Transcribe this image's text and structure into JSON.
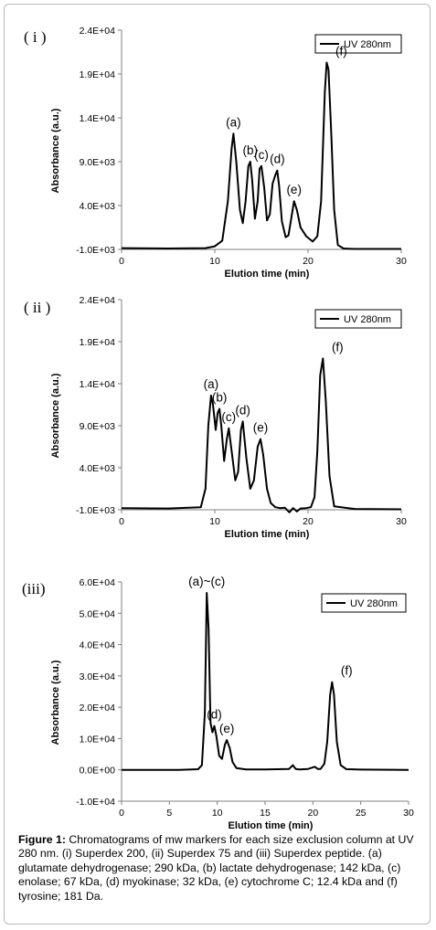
{
  "chart_data": [
    {
      "type": "line",
      "panel_label": "( i )",
      "xlabel": "Elution time (min)",
      "ylabel": "Absorbance (a.u.)",
      "xlim": [
        0,
        30
      ],
      "ylim": [
        -1000,
        24000
      ],
      "x_ticks": [
        0,
        10,
        20,
        30
      ],
      "x_tick_labels": [
        "0",
        "10",
        "20",
        "30"
      ],
      "y_ticks": [
        -1000,
        4000,
        9000,
        14000,
        19000,
        24000
      ],
      "y_tick_labels": [
        "-1.0E+03",
        "4.0E+03",
        "9.0E+03",
        "1.4E+04",
        "1.9E+04",
        "2.4E+04"
      ],
      "legend": "top-right",
      "series": [
        {
          "name": "UV 280nm",
          "x": [
            0,
            5,
            9,
            10,
            10.8,
            11.4,
            11.8,
            12.0,
            12.3,
            12.7,
            13.0,
            13.3,
            13.6,
            13.8,
            14.0,
            14.3,
            14.6,
            14.8,
            15.0,
            15.3,
            15.6,
            15.9,
            16.2,
            16.5,
            16.7,
            16.9,
            17.2,
            17.6,
            17.9,
            18.2,
            18.5,
            18.8,
            19.2,
            19.8,
            20.5,
            21.0,
            21.4,
            21.8,
            22.0,
            22.2,
            22.5,
            22.8,
            23.2,
            23.8,
            25,
            30
          ],
          "y": [
            -850,
            -900,
            -850,
            -650,
            0,
            4500,
            10500,
            12200,
            9000,
            3500,
            2000,
            4500,
            8500,
            9000,
            7000,
            2500,
            4500,
            8200,
            8500,
            6000,
            2300,
            3000,
            6500,
            7500,
            8000,
            6200,
            2200,
            400,
            600,
            2500,
            4500,
            3500,
            1500,
            500,
            -100,
            500,
            4500,
            17000,
            20300,
            19500,
            12000,
            3500,
            -500,
            -900,
            -950,
            -950
          ]
        }
      ],
      "annotations": [
        {
          "text": "(a)",
          "x": 12.0,
          "y": 12200
        },
        {
          "text": "(b)",
          "x": 13.8,
          "y": 9000
        },
        {
          "text": "(c)",
          "x": 15.0,
          "y": 8500
        },
        {
          "text": "(d)",
          "x": 16.7,
          "y": 8000
        },
        {
          "text": "(e)",
          "x": 18.5,
          "y": 4500
        },
        {
          "text": "(f)",
          "x": 22.0,
          "y": 20300
        }
      ]
    },
    {
      "type": "line",
      "panel_label": "( ii )",
      "xlabel": "Elution time (min)",
      "ylabel": "Absorbance (a.u.)",
      "xlim": [
        0,
        30
      ],
      "ylim": [
        -1000,
        24000
      ],
      "x_ticks": [
        0,
        10,
        20,
        30
      ],
      "x_tick_labels": [
        "0",
        "10",
        "20",
        "30"
      ],
      "y_ticks": [
        -1000,
        4000,
        9000,
        14000,
        19000,
        24000
      ],
      "y_tick_labels": [
        "-1.0E+03",
        "4.0E+03",
        "9.0E+03",
        "1.4E+04",
        "1.9E+04",
        "2.4E+04"
      ],
      "legend": "top-right",
      "series": [
        {
          "name": "UV 280nm",
          "x": [
            0,
            5,
            8.5,
            9.0,
            9.3,
            9.6,
            9.8,
            10.1,
            10.3,
            10.5,
            10.7,
            11.0,
            11.3,
            11.5,
            11.8,
            12.2,
            12.5,
            12.8,
            13.0,
            13.4,
            13.8,
            14.2,
            14.6,
            14.9,
            15.2,
            15.6,
            16.0,
            16.5,
            17.0,
            17.5,
            18.0,
            18.4,
            18.8,
            19.2,
            19.8,
            20.3,
            20.7,
            21.0,
            21.3,
            21.6,
            21.9,
            22.3,
            22.8,
            25,
            30
          ],
          "y": [
            -800,
            -850,
            -700,
            1500,
            9000,
            12600,
            11500,
            8500,
            10500,
            11000,
            9000,
            4800,
            7500,
            8700,
            6000,
            2500,
            3500,
            8500,
            9500,
            5000,
            1500,
            2500,
            6500,
            7400,
            5500,
            1500,
            -200,
            -700,
            -800,
            -750,
            -1300,
            -800,
            -1200,
            -850,
            -800,
            -700,
            500,
            6000,
            15000,
            17000,
            12000,
            3000,
            -600,
            -900,
            -950
          ]
        }
      ],
      "annotations": [
        {
          "text": "(a)",
          "x": 9.6,
          "y": 12600
        },
        {
          "text": "(b)",
          "x": 10.5,
          "y": 11000
        },
        {
          "text": "(c)",
          "x": 11.5,
          "y": 8700
        },
        {
          "text": "(d)",
          "x": 13.0,
          "y": 9500
        },
        {
          "text": "(e)",
          "x": 14.9,
          "y": 7400
        },
        {
          "text": "(f)",
          "x": 21.6,
          "y": 17000
        }
      ]
    },
    {
      "type": "line",
      "panel_label": "(iii)",
      "xlabel": "Elution time (min)",
      "ylabel": "Absorbance (a.u.)",
      "xlim": [
        0,
        30
      ],
      "ylim": [
        -10000,
        60000
      ],
      "x_ticks": [
        0,
        5,
        10,
        15,
        20,
        25,
        30
      ],
      "x_tick_labels": [
        "0",
        "5",
        "10",
        "15",
        "20",
        "25",
        "30"
      ],
      "y_ticks": [
        -10000,
        0,
        10000,
        20000,
        30000,
        40000,
        50000,
        60000
      ],
      "y_tick_labels": [
        "-1.0E+04",
        "0.0E+00",
        "1.0E+04",
        "2.0E+04",
        "3.0E+04",
        "4.0E+04",
        "5.0E+04",
        "6.0E+04"
      ],
      "legend": "top-right",
      "series": [
        {
          "name": "UV 280nm",
          "x": [
            0,
            6,
            8.0,
            8.4,
            8.7,
            8.9,
            9.1,
            9.3,
            9.5,
            9.7,
            9.9,
            10.2,
            10.5,
            10.8,
            11.0,
            11.3,
            11.6,
            12.0,
            13,
            15,
            17.5,
            17.9,
            18.2,
            18.6,
            19.5,
            20.2,
            20.5,
            20.8,
            21.2,
            21.5,
            21.8,
            22.0,
            22.2,
            22.5,
            22.9,
            23.5,
            25,
            30
          ],
          "y": [
            0,
            0,
            200,
            1500,
            18000,
            56500,
            45000,
            15000,
            12000,
            14000,
            11000,
            4500,
            3500,
            8000,
            9500,
            7000,
            2500,
            600,
            150,
            150,
            300,
            1500,
            300,
            150,
            300,
            1000,
            300,
            300,
            2000,
            9000,
            24000,
            28000,
            24000,
            9000,
            1500,
            200,
            100,
            0
          ]
        }
      ],
      "annotations": [
        {
          "text": "(a)~(c)",
          "x": 8.9,
          "y": 56500
        },
        {
          "text": "(d)",
          "x": 9.7,
          "y": 14000
        },
        {
          "text": "(e)",
          "x": 11.0,
          "y": 9500
        },
        {
          "text": "(f)",
          "x": 22.0,
          "y": 28000
        }
      ]
    }
  ],
  "caption": {
    "label": "Figure 1:",
    "text": " Chromatograms of mw markers for each size exclusion column at UV 280 nm. (i) Superdex 200, (ii) Superdex 75 and (iii) Superdex peptide. (a) glutamate dehydrogenase; 290 kDa, (b) lactate dehydrogenase; 142 kDa, (c) enolase; 67 kDa, (d) myokinase; 32 kDa, (e) cytochrome C; 12.4 kDa and (f) tyrosine; 181 Da."
  }
}
